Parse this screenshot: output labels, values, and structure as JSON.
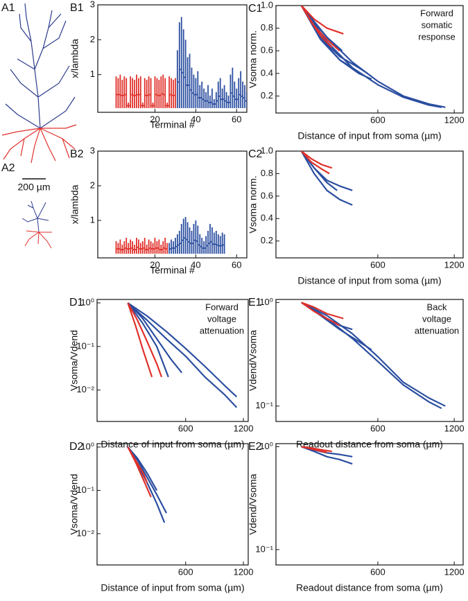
{
  "figure_labels": {
    "a1": "A1",
    "a2": "A2",
    "scale_bar": "200 µm"
  },
  "chart_data": [
    {
      "type": "dendrogram",
      "panel_label": "B1",
      "xlabel": "Terminal #",
      "ylabel": "x/lambda",
      "xlim": [
        -8,
        65
      ],
      "ylim": [
        -0.08,
        3
      ],
      "xticks": [
        20,
        40,
        60
      ],
      "yticks": [
        1,
        2,
        3
      ],
      "series": [
        {
          "color": "#e0302a",
          "x": [
            1,
            2,
            3,
            4,
            5,
            6,
            7,
            8,
            9,
            10,
            11,
            12,
            13,
            14,
            15,
            16,
            17,
            18,
            19,
            20,
            21,
            22,
            23,
            24,
            25,
            26,
            27,
            28,
            29,
            30
          ],
          "values": [
            0.95,
            0.9,
            1.0,
            0.85,
            0.95,
            0.9,
            0.2,
            0.95,
            0.9,
            0.85,
            1.0,
            0.9,
            0.95,
            0.2,
            0.9,
            0.85,
            0.95,
            0.9,
            0.2,
            0.95,
            0.9,
            0.85,
            0.95,
            1.0,
            0.9,
            0.2,
            0.95,
            0.9,
            0.85,
            0.9
          ]
        },
        {
          "color": "#2b4ea0",
          "x": [
            31,
            32,
            33,
            34,
            35,
            36,
            37,
            38,
            39,
            40,
            41,
            42,
            43,
            44,
            45,
            46,
            47,
            48,
            49,
            50,
            51,
            52,
            53,
            54,
            55,
            56,
            57,
            58,
            59,
            60,
            61,
            62,
            63,
            64,
            65
          ],
          "values": [
            1.7,
            2.5,
            2.65,
            2.3,
            2.0,
            1.5,
            1.6,
            1.2,
            1.0,
            0.9,
            1.1,
            0.7,
            0.8,
            0.6,
            0.5,
            0.7,
            0.4,
            0.6,
            0.3,
            0.5,
            0.8,
            0.9,
            0.6,
            0.7,
            0.5,
            0.4,
            1.0,
            1.2,
            0.8,
            0.6,
            0.9,
            1.1,
            0.8,
            0.7,
            0.5
          ]
        }
      ]
    },
    {
      "type": "dendrogram",
      "panel_label": "B2",
      "xlabel": "Terminal #",
      "ylabel": "x/lambda",
      "xlim": [
        -8,
        65
      ],
      "ylim": [
        -0.08,
        3
      ],
      "xticks": [
        20,
        40,
        60
      ],
      "yticks": [
        1,
        2,
        3
      ],
      "series": [
        {
          "color": "#e0302a",
          "x": [
            1,
            2,
            3,
            4,
            5,
            6,
            7,
            8,
            9,
            10,
            11,
            12,
            13,
            14,
            15,
            16,
            17,
            18,
            19,
            20,
            21,
            22,
            23,
            24,
            25,
            26
          ],
          "values": [
            0.4,
            0.35,
            0.45,
            0.3,
            0.4,
            0.5,
            0.35,
            0.45,
            0.4,
            0.3,
            0.5,
            0.45,
            0.35,
            0.4,
            0.5,
            0.3,
            0.45,
            0.4,
            0.35,
            0.5,
            0.4,
            0.45,
            0.3,
            0.4,
            0.5,
            0.35
          ]
        },
        {
          "color": "#2b4ea0",
          "x": [
            27,
            28,
            29,
            30,
            31,
            32,
            33,
            34,
            35,
            36,
            37,
            38,
            39,
            40,
            41,
            42,
            43,
            44,
            45,
            46,
            47,
            48,
            49,
            50,
            51,
            52,
            53,
            54
          ],
          "values": [
            0.35,
            0.45,
            0.4,
            0.5,
            0.6,
            0.7,
            0.9,
            1.05,
            1.1,
            0.95,
            0.8,
            0.7,
            0.9,
            1.0,
            0.85,
            0.6,
            0.5,
            0.4,
            0.55,
            0.7,
            0.9,
            0.8,
            0.65,
            0.7,
            0.6,
            0.55,
            0.65,
            0.6
          ]
        }
      ]
    },
    {
      "type": "line",
      "panel_label": "C1",
      "xlabel": "Distance of input from soma (µm)",
      "ylabel": "Vsoma norm.",
      "annotation": [
        "Forward",
        "somatic",
        "response"
      ],
      "xlim": [
        -200,
        1270
      ],
      "ylim": [
        0.05,
        1.0
      ],
      "xticks": [
        600,
        1200
      ],
      "yticks": [
        0.2,
        0.4,
        0.6,
        0.8,
        {
          "value": 1,
          "label": "1.0"
        }
      ],
      "log": false,
      "series": [
        {
          "color": "#2b4ea0",
          "x": [
            0,
            200,
            400,
            600,
            800,
            1000,
            1130
          ],
          "values": [
            1,
            0.72,
            0.5,
            0.33,
            0.2,
            0.13,
            0.1
          ]
        },
        {
          "color": "#2b4ea0",
          "x": [
            0,
            200,
            400,
            600,
            800,
            1000,
            1100
          ],
          "values": [
            1,
            0.68,
            0.45,
            0.3,
            0.19,
            0.12,
            0.1
          ]
        },
        {
          "color": "#2b4ea0",
          "x": [
            0,
            150,
            300,
            450,
            550
          ],
          "values": [
            1,
            0.7,
            0.52,
            0.4,
            0.35
          ]
        },
        {
          "color": "#2b4ea0",
          "x": [
            0,
            150,
            300,
            450,
            520
          ],
          "values": [
            1,
            0.72,
            0.55,
            0.45,
            0.4
          ]
        },
        {
          "color": "#2b4ea0",
          "x": [
            0,
            100,
            200,
            300,
            400
          ],
          "values": [
            1,
            0.8,
            0.65,
            0.52,
            0.45
          ]
        },
        {
          "color": "#2b4ea0",
          "x": [
            0,
            100,
            200,
            320
          ],
          "values": [
            1,
            0.85,
            0.72,
            0.6
          ]
        },
        {
          "color": "#e0302a",
          "x": [
            0,
            100,
            200,
            330
          ],
          "values": [
            1,
            0.88,
            0.8,
            0.75
          ]
        },
        {
          "color": "#e0302a",
          "x": [
            0,
            100,
            200,
            300
          ],
          "values": [
            1,
            0.82,
            0.7,
            0.6
          ]
        },
        {
          "color": "#e0302a",
          "x": [
            0,
            80,
            160,
            240
          ],
          "values": [
            1,
            0.85,
            0.72,
            0.63
          ]
        }
      ]
    },
    {
      "type": "line",
      "panel_label": "C2",
      "xlabel": "Distance of input from soma (µm)",
      "ylabel": "Vsoma norm.",
      "xlim": [
        -200,
        1270
      ],
      "ylim": [
        0.05,
        1.0
      ],
      "xticks": [
        600,
        1200
      ],
      "yticks": [
        0.2,
        0.4,
        0.6,
        0.8,
        {
          "value": 1,
          "label": "1.0"
        }
      ],
      "log": false,
      "series": [
        {
          "color": "#2b4ea0",
          "x": [
            0,
            100,
            200,
            300,
            400
          ],
          "values": [
            1,
            0.8,
            0.65,
            0.57,
            0.52
          ]
        },
        {
          "color": "#2b4ea0",
          "x": [
            0,
            100,
            200,
            300,
            400
          ],
          "values": [
            1,
            0.85,
            0.74,
            0.69,
            0.65
          ]
        },
        {
          "color": "#2b4ea0",
          "x": [
            0,
            100,
            200,
            280
          ],
          "values": [
            1,
            0.85,
            0.72,
            0.65
          ]
        },
        {
          "color": "#e0302a",
          "x": [
            0,
            80,
            160,
            240
          ],
          "values": [
            1,
            0.93,
            0.88,
            0.85
          ]
        },
        {
          "color": "#e0302a",
          "x": [
            0,
            80,
            160,
            220
          ],
          "values": [
            1,
            0.9,
            0.84,
            0.8
          ]
        }
      ]
    },
    {
      "type": "line",
      "panel_label": "D1",
      "xlabel": "Distance of input from soma (µm)",
      "ylabel": "Vsoma/Vdend",
      "annotation": [
        "Forward",
        "voltage",
        "attenuation"
      ],
      "xlim": [
        -320,
        1250
      ],
      "ylim": [
        0.0019,
        1.2
      ],
      "xticks": [
        600,
        1200
      ],
      "yticks": [
        {
          "value": 0.01,
          "label": "10⁻²"
        },
        {
          "value": 0.1,
          "label": "10⁻¹"
        },
        {
          "value": 1,
          "label": "10⁰"
        }
      ],
      "log": true,
      "series": [
        {
          "color": "#2b4ea0",
          "x": [
            0,
            200,
            400,
            600,
            800,
            1000,
            1130
          ],
          "values": [
            1,
            0.5,
            0.22,
            0.09,
            0.035,
            0.013,
            0.007
          ]
        },
        {
          "color": "#2b4ea0",
          "x": [
            0,
            200,
            400,
            600,
            800,
            1000,
            1130
          ],
          "values": [
            1,
            0.4,
            0.15,
            0.06,
            0.02,
            0.008,
            0.004
          ]
        },
        {
          "color": "#2b4ea0",
          "x": [
            0,
            150,
            300,
            450,
            560
          ],
          "values": [
            1,
            0.45,
            0.15,
            0.05,
            0.025
          ]
        },
        {
          "color": "#2b4ea0",
          "x": [
            0,
            150,
            300,
            420
          ],
          "values": [
            1,
            0.35,
            0.1,
            0.02
          ]
        },
        {
          "color": "#e0302a",
          "x": [
            0,
            100,
            200,
            300,
            350
          ],
          "values": [
            1,
            0.4,
            0.13,
            0.04,
            0.02
          ]
        },
        {
          "color": "#e0302a",
          "x": [
            0,
            80,
            160,
            250
          ],
          "values": [
            1,
            0.3,
            0.08,
            0.02
          ]
        }
      ]
    },
    {
      "type": "line",
      "panel_label": "D2",
      "xlabel": "Distance of input from soma (µm)",
      "ylabel": "Vsoma/Vdend",
      "xlim": [
        -320,
        1250
      ],
      "ylim": [
        0.0019,
        1.2
      ],
      "xticks": [
        600,
        1200
      ],
      "yticks": [
        {
          "value": 0.01,
          "label": "10⁻²"
        },
        {
          "value": 0.1,
          "label": "10⁻¹"
        },
        {
          "value": 1,
          "label": "10⁰"
        }
      ],
      "log": true,
      "series": [
        {
          "color": "#2b4ea0",
          "x": [
            0,
            100,
            200,
            300,
            400
          ],
          "values": [
            1,
            0.5,
            0.2,
            0.08,
            0.03
          ]
        },
        {
          "color": "#2b4ea0",
          "x": [
            0,
            100,
            200,
            300,
            380
          ],
          "values": [
            1,
            0.4,
            0.15,
            0.05,
            0.018
          ]
        },
        {
          "color": "#2b4ea0",
          "x": [
            0,
            100,
            200,
            300
          ],
          "values": [
            1,
            0.55,
            0.25,
            0.1
          ]
        },
        {
          "color": "#e0302a",
          "x": [
            0,
            80,
            160,
            240
          ],
          "values": [
            1,
            0.45,
            0.18,
            0.07
          ]
        },
        {
          "color": "#e0302a",
          "x": [
            0,
            80,
            160,
            200
          ],
          "values": [
            1,
            0.5,
            0.25,
            0.15
          ]
        }
      ]
    },
    {
      "type": "line",
      "panel_label": "E1",
      "xlabel": "Readout distance from soma (µm)",
      "ylabel": "Vdend/Vsoma",
      "annotation": [
        "Back",
        "voltage",
        "attenuation"
      ],
      "xlim": [
        -200,
        1270
      ],
      "ylim": [
        0.071,
        1.07
      ],
      "xticks": [
        600,
        1200
      ],
      "yticks": [
        {
          "value": 0.1,
          "label": "10⁻¹"
        },
        {
          "value": 1,
          "label": "10⁰"
        }
      ],
      "log": true,
      "series": [
        {
          "color": "#2b4ea0",
          "x": [
            0,
            200,
            400,
            600,
            800,
            1000,
            1130
          ],
          "values": [
            1,
            0.75,
            0.5,
            0.3,
            0.17,
            0.12,
            0.1
          ]
        },
        {
          "color": "#2b4ea0",
          "x": [
            0,
            200,
            400,
            600,
            800,
            1000,
            1100
          ],
          "values": [
            1,
            0.7,
            0.45,
            0.27,
            0.16,
            0.11,
            0.095
          ]
        },
        {
          "color": "#2b4ea0",
          "x": [
            0,
            150,
            300,
            450,
            550
          ],
          "values": [
            1,
            0.75,
            0.55,
            0.42,
            0.35
          ]
        },
        {
          "color": "#2b4ea0",
          "x": [
            0,
            100,
            200,
            300,
            400
          ],
          "values": [
            1,
            0.85,
            0.7,
            0.6,
            0.55
          ]
        },
        {
          "color": "#e0302a",
          "x": [
            0,
            100,
            200,
            330
          ],
          "values": [
            1,
            0.9,
            0.78,
            0.7
          ]
        },
        {
          "color": "#e0302a",
          "x": [
            0,
            100,
            200,
            300
          ],
          "values": [
            1,
            0.82,
            0.7,
            0.6
          ]
        }
      ]
    },
    {
      "type": "line",
      "panel_label": "E2",
      "xlabel": "Readout distance from soma (µm)",
      "ylabel": "Vdend/Vsoma",
      "xlim": [
        -200,
        1270
      ],
      "ylim": [
        0.071,
        1.07
      ],
      "xticks": [
        600,
        1200
      ],
      "yticks": [
        {
          "value": 0.1,
          "label": "10⁻¹"
        },
        {
          "value": 1,
          "label": "10⁰"
        }
      ],
      "log": true,
      "series": [
        {
          "color": "#2b4ea0",
          "x": [
            0,
            100,
            200,
            300,
            400
          ],
          "values": [
            1,
            0.9,
            0.8,
            0.75,
            0.68
          ]
        },
        {
          "color": "#2b4ea0",
          "x": [
            0,
            100,
            200,
            300,
            400
          ],
          "values": [
            1,
            0.93,
            0.87,
            0.84,
            0.8
          ]
        },
        {
          "color": "#e0302a",
          "x": [
            0,
            80,
            160,
            240
          ],
          "values": [
            1,
            0.97,
            0.93,
            0.9
          ]
        },
        {
          "color": "#e0302a",
          "x": [
            0,
            80,
            160,
            200
          ],
          "values": [
            1,
            0.95,
            0.9,
            0.88
          ]
        }
      ]
    }
  ]
}
